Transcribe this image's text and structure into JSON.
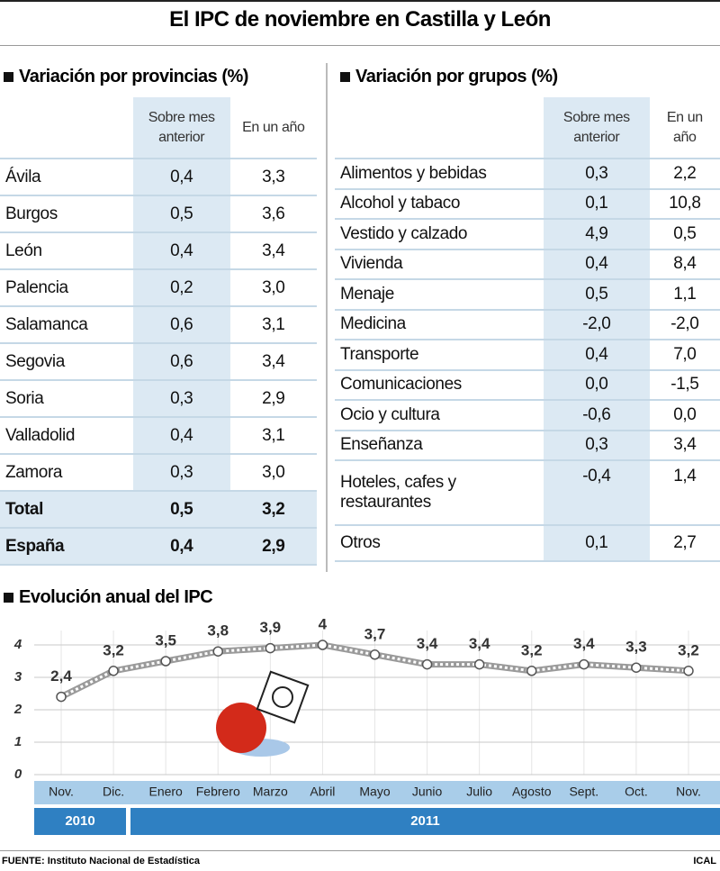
{
  "title": "El IPC de noviembre en Castilla y León",
  "provincias": {
    "heading": "Variación por provincias (%)",
    "columns": [
      "Sobre mes anterior",
      "En un año"
    ],
    "rows": [
      [
        "Ávila",
        "0,4",
        "3,3"
      ],
      [
        "Burgos",
        "0,5",
        "3,6"
      ],
      [
        "León",
        "0,4",
        "3,4"
      ],
      [
        "Palencia",
        "0,2",
        "3,0"
      ],
      [
        "Salamanca",
        "0,6",
        "3,1"
      ],
      [
        "Segovia",
        "0,6",
        "3,4"
      ],
      [
        "Soria",
        "0,3",
        "2,9"
      ],
      [
        "Valladolid",
        "0,4",
        "3,1"
      ],
      [
        "Zamora",
        "0,3",
        "3,0"
      ],
      [
        "Total",
        "0,5",
        "3,2"
      ],
      [
        "España",
        "0,4",
        "2,9"
      ]
    ]
  },
  "grupos": {
    "heading": "Variación por grupos (%)",
    "columns": [
      "Sobre mes anterior",
      "En un año"
    ],
    "rows": [
      [
        "Alimentos y bebidas",
        "0,3",
        "2,2"
      ],
      [
        "Alcohol y tabaco",
        "0,1",
        "10,8"
      ],
      [
        "Vestido y calzado",
        "4,9",
        "0,5"
      ],
      [
        "Vivienda",
        "0,4",
        "8,4"
      ],
      [
        "Menaje",
        "0,5",
        "1,1"
      ],
      [
        "Medicina",
        "-2,0",
        "-2,0"
      ],
      [
        "Transporte",
        "0,4",
        "7,0"
      ],
      [
        "Comunicaciones",
        "0,0",
        "-1,5"
      ],
      [
        "Ocio y cultura",
        "-0,6",
        "0,0"
      ],
      [
        "Enseñanza",
        "0,3",
        "3,4"
      ],
      [
        "Hoteles, cafes y restaurantes",
        "-0,4",
        "1,4"
      ],
      [
        "Otros",
        "0,1",
        "2,7"
      ]
    ]
  },
  "chart_data": {
    "type": "line",
    "title": "Evolución anual del IPC",
    "categories": [
      "Nov.",
      "Dic.",
      "Enero",
      "Febrero",
      "Marzo",
      "Abril",
      "Mayo",
      "Junio",
      "Julio",
      "Agosto",
      "Sept.",
      "Oct.",
      "Nov."
    ],
    "values": [
      2.4,
      3.2,
      3.5,
      3.8,
      3.9,
      4,
      3.7,
      3.4,
      3.4,
      3.2,
      3.4,
      3.3,
      3.2
    ],
    "value_labels": [
      "2,4",
      "3,2",
      "3,5",
      "3,8",
      "3,9",
      "4",
      "3,7",
      "3,4",
      "3,4",
      "3,2",
      "3,4",
      "3,3",
      "3,2"
    ],
    "color": "#9a9a9a",
    "ylim": [
      0,
      4
    ],
    "yticks": [
      0,
      1,
      2,
      3,
      4
    ],
    "grid": true,
    "years": [
      "2010",
      "2011"
    ]
  },
  "source": "FUENTE: Instituto Nacional de Estadística",
  "agency": "ICAL"
}
